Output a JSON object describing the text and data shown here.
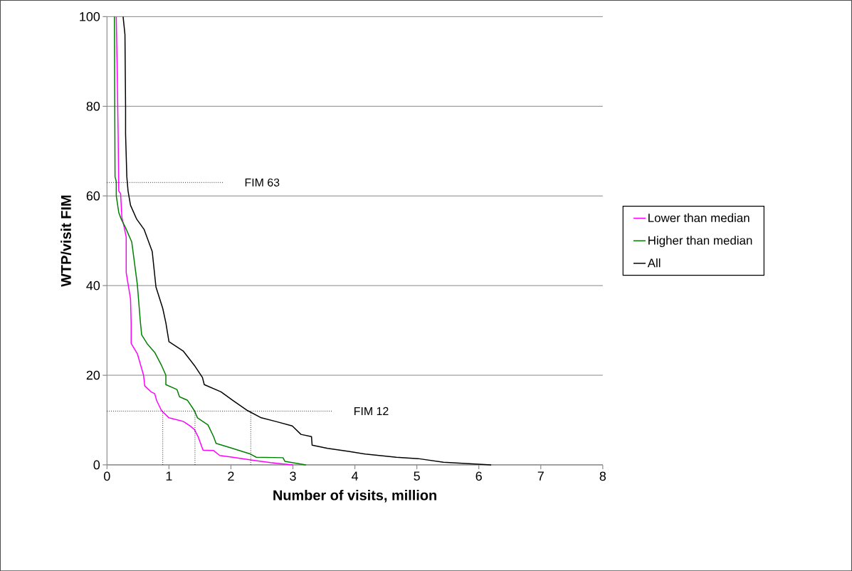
{
  "chart_data": {
    "type": "line",
    "xlabel": "Number of visits, million",
    "ylabel": "WTP/visit FIM",
    "xlim": [
      0,
      8
    ],
    "ylim": [
      0,
      100
    ],
    "xticks": [
      0,
      1,
      2,
      3,
      4,
      5,
      6,
      7,
      8
    ],
    "yticks": [
      0,
      20,
      40,
      60,
      80,
      100
    ],
    "grid": "y",
    "legend": "right",
    "marker": "none",
    "line_style": "solid",
    "series": [
      {
        "name": "Lower than median",
        "color": "#ff00ff",
        "x": [
          0.15,
          0.16,
          0.18,
          0.19,
          0.22,
          0.24,
          0.28,
          0.31,
          0.31,
          0.38,
          0.39,
          0.39,
          0.49,
          0.59,
          0.61,
          0.71,
          0.77,
          0.8,
          0.88,
          1.0,
          1.23,
          1.34,
          1.41,
          1.47,
          1.55,
          1.72,
          1.82,
          2.03,
          2.38,
          2.64,
          2.85,
          3.0
        ],
        "values": [
          100,
          91.7,
          73.8,
          61.1,
          60.5,
          55.2,
          52.9,
          50.8,
          42.9,
          37,
          31.7,
          27.1,
          24.8,
          20,
          17.6,
          16.3,
          15.9,
          14.4,
          12.1,
          10.5,
          9.7,
          8.7,
          7.9,
          6.3,
          3.3,
          3.2,
          2.1,
          1.7,
          1.0,
          0.5,
          0.2,
          0
        ]
      },
      {
        "name": "Higher than median",
        "color": "#008000",
        "x": [
          0.12,
          0.13,
          0.15,
          0.15,
          0.19,
          0.23,
          0.3,
          0.4,
          0.49,
          0.54,
          0.56,
          0.65,
          0.77,
          0.88,
          0.95,
          0.95,
          1.13,
          1.17,
          1.3,
          1.41,
          1.46,
          1.63,
          1.72,
          1.76,
          1.95,
          2.3,
          2.41,
          2.84,
          2.87,
          3.21
        ],
        "values": [
          100,
          64.3,
          63.2,
          60,
          56.3,
          54.8,
          52.9,
          49.7,
          40.2,
          31.7,
          29,
          27,
          25.1,
          22.2,
          20,
          17.9,
          16.8,
          15.2,
          14.4,
          12.1,
          10.5,
          8.9,
          6.3,
          4.8,
          4.0,
          2.5,
          1.7,
          1.6,
          0.8,
          0
        ]
      },
      {
        "name": "All",
        "color": "#000000",
        "x": [
          0.26,
          0.29,
          0.3,
          0.3,
          0.32,
          0.34,
          0.38,
          0.48,
          0.6,
          0.73,
          0.79,
          0.9,
          0.95,
          1.0,
          1.23,
          1.41,
          1.54,
          1.57,
          1.84,
          2.03,
          2.27,
          2.49,
          2.72,
          2.99,
          3.13,
          3.3,
          3.31,
          3.56,
          3.9,
          4.17,
          4.67,
          5.02,
          5.43,
          6.2
        ],
        "values": [
          100,
          96,
          80,
          73.8,
          64.3,
          61.1,
          57.9,
          54.8,
          52.5,
          47.6,
          39.7,
          34.9,
          31.7,
          27.5,
          25.4,
          22.2,
          19.5,
          17.9,
          16.3,
          14.4,
          12.1,
          10.5,
          9.7,
          8.7,
          6.8,
          6.3,
          4.4,
          3.7,
          3.0,
          2.4,
          1.7,
          1.4,
          0.6,
          0
        ]
      }
    ],
    "ref_lines": [
      {
        "axis": "y",
        "value": 63,
        "label": "FIM 63",
        "line_style": "dotted"
      },
      {
        "axis": "y",
        "value": 12,
        "label": "FIM 12",
        "line_style": "dotted"
      },
      {
        "axis": "x",
        "value": 0.9,
        "line_style": "dotted"
      },
      {
        "axis": "x",
        "value": 1.42,
        "line_style": "dotted"
      },
      {
        "axis": "x",
        "value": 2.32,
        "line_style": "dotted"
      }
    ]
  }
}
